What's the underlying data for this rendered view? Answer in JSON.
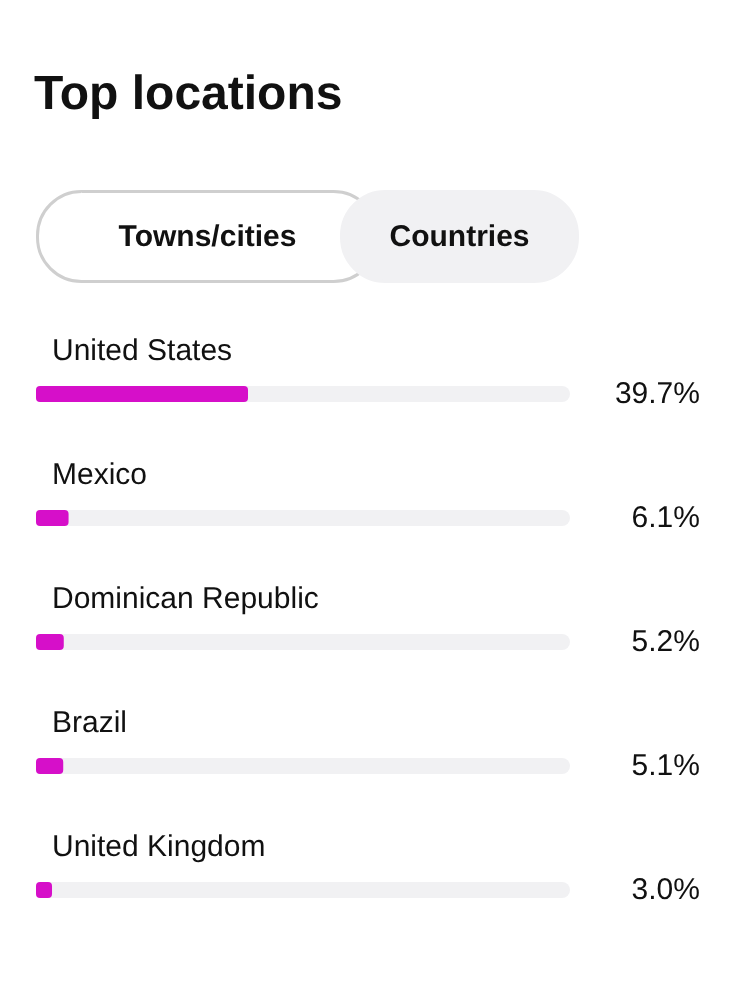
{
  "chart_data": {
    "type": "bar",
    "orientation": "horizontal",
    "title": "Top locations",
    "annotations": [
      "Towns/cities",
      "Countries"
    ],
    "categories": [
      "United States",
      "Mexico",
      "Dominican Republic",
      "Brazil",
      "United Kingdom"
    ],
    "values": [
      39.7,
      6.1,
      5.2,
      5.1,
      3.0
    ],
    "value_labels": [
      "39.7%",
      "6.1%",
      "5.2%",
      "5.1%",
      "3.0%"
    ],
    "color": "#d60fc9",
    "xlim": [
      0,
      100
    ]
  }
}
